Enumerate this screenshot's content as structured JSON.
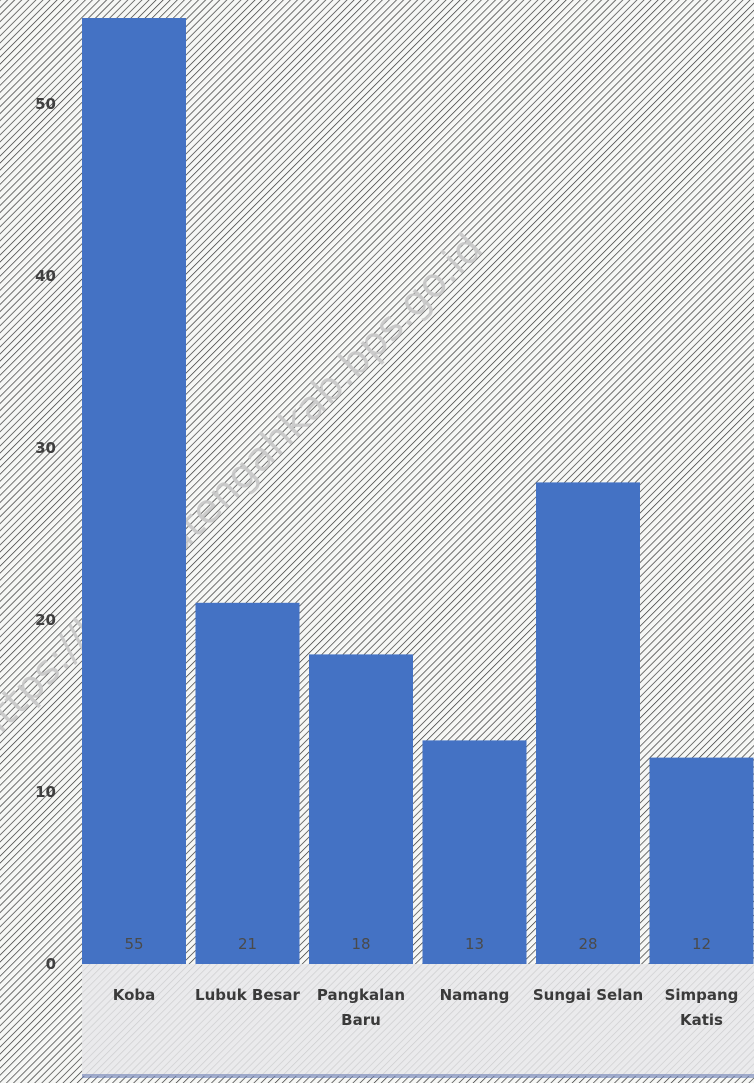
{
  "colors": {
    "background": "#f6f7f5",
    "hatch": "#2a2a2a",
    "bar": "#4472c4",
    "axis_band": "#e7e7ea",
    "watermark": "#c8c8c8"
  },
  "watermark": {
    "text": "https://bangkatengahkab.bps.go.id"
  },
  "chart_data": {
    "type": "bar",
    "categories": [
      "Koba",
      "Lubuk Besar",
      "Pangkalan Baru",
      "Namang",
      "Sungai Selan",
      "Simpang Katis"
    ],
    "category_lines": [
      [
        "Koba"
      ],
      [
        "Lubuk Besar"
      ],
      [
        "Pangkalan",
        "Baru"
      ],
      [
        "Namang"
      ],
      [
        "Sungai Selan"
      ],
      [
        "Simpang",
        "Katis"
      ]
    ],
    "values": [
      55,
      21,
      18,
      13,
      28,
      12
    ],
    "value_labels": [
      "55",
      "21",
      "18",
      "13",
      "28",
      "12"
    ],
    "yticks": [
      0,
      10,
      20,
      30,
      40,
      50
    ],
    "ylim": [
      0,
      55
    ],
    "title": "",
    "xlabel": "",
    "ylabel": "",
    "grid": false,
    "legend": "none",
    "pattern": "diagonal hatch"
  }
}
